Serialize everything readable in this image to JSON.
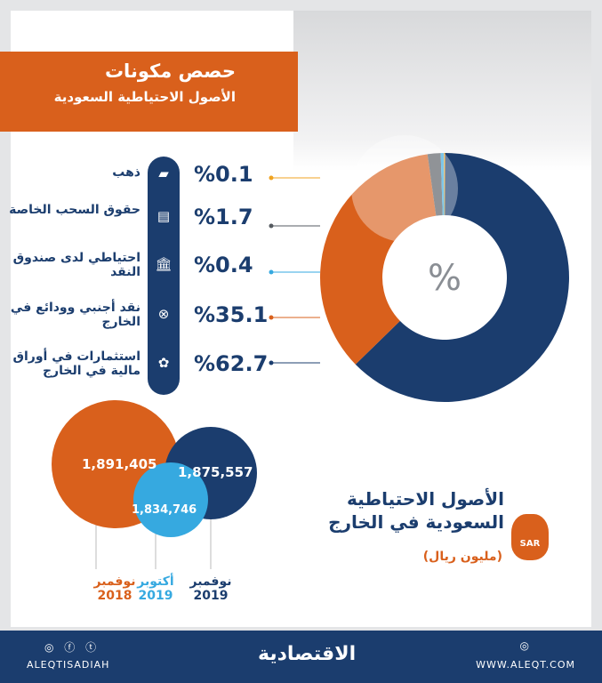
{
  "header": {
    "title": "حصص مكونات",
    "subtitle": "الأصول الاحتياطية السعودية"
  },
  "components": [
    {
      "label": "ذهب",
      "value": "%0.1",
      "icon": "gold-bar-icon",
      "glyph": "▰",
      "color": "#f0a320"
    },
    {
      "label": "حقوق السحب الخاصة",
      "value": "%1.7",
      "icon": "atm-card-icon",
      "glyph": "▤",
      "color": "#555a60"
    },
    {
      "label": "احتياطي لدى صندوق النقد",
      "value": "%0.4",
      "icon": "bank-icon",
      "glyph": "🏛",
      "color": "#36a9e0"
    },
    {
      "label": "نقد أجنبي وودائع في الخارج",
      "value": "%35.1",
      "icon": "safe-icon",
      "glyph": "⊗",
      "color": "#d9601c"
    },
    {
      "label": "استثمارات في أوراق مالية في الخارج",
      "value": "%62.7",
      "icon": "plant-coin-icon",
      "glyph": "✿",
      "color": "#1b3d6e"
    }
  ],
  "chart_data": [
    {
      "type": "pie",
      "center_label": "%",
      "slices": [
        {
          "name": "استثمارات في أوراق مالية في الخارج",
          "value": 62.7,
          "color": "#1b3d6e"
        },
        {
          "name": "نقد أجنبي وودائع في الخارج",
          "value": 35.1,
          "color": "#d9601c"
        },
        {
          "name": "حقوق السحب الخاصة",
          "value": 1.7,
          "color": "#555a60"
        },
        {
          "name": "احتياطي لدى صندوق النقد",
          "value": 0.4,
          "color": "#36a9e0"
        },
        {
          "name": "ذهب",
          "value": 0.1,
          "color": "#f0a320"
        }
      ]
    },
    {
      "type": "bubble",
      "title": "الأصول الاحتياطية السعودية في الخارج",
      "unit": "(مليون ريال)",
      "points": [
        {
          "label": "1,891,405",
          "value": 1891405,
          "month": "نوفمبر",
          "year": "2018",
          "color": "#d9601c"
        },
        {
          "label": "1,834,746",
          "value": 1834746,
          "month": "أكتوبر",
          "year": "2019",
          "color": "#36a9e0"
        },
        {
          "label": "1,875,557",
          "value": 1875557,
          "month": "نوفمبر",
          "year": "2019",
          "color": "#1b3d6e"
        }
      ]
    }
  ],
  "bag_label": "SAR",
  "footer": {
    "handle": "ALEQTISADIAH",
    "brand": "الاقتصادية",
    "site": "WWW.ALEQT.COM",
    "social": "◎ ⓕ ⓣ",
    "site_icon": "◎"
  }
}
